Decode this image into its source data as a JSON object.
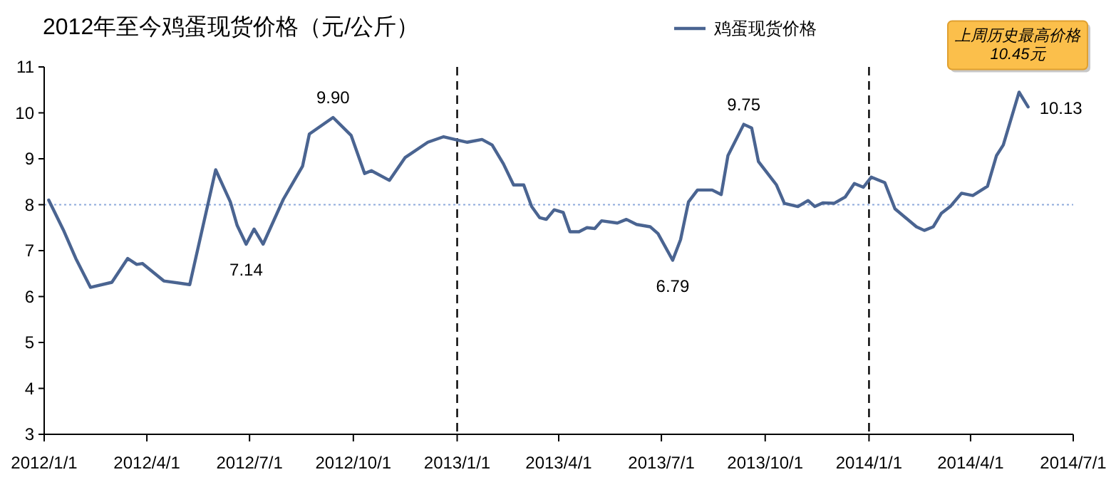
{
  "chart_data": {
    "type": "line",
    "title": "2012年至今鸡蛋现货价格（元/公斤）",
    "x": [
      "2012-01-05",
      "2012-01-18",
      "2012-01-29",
      "2012-02-11",
      "2012-03-01",
      "2012-03-15",
      "2012-03-23",
      "2012-03-28",
      "2012-04-16",
      "2012-05-09",
      "2012-06-01",
      "2012-06-14",
      "2012-06-20",
      "2012-06-28",
      "2012-07-05",
      "2012-07-13",
      "2012-07-31",
      "2012-08-17",
      "2012-08-23",
      "2012-09-13",
      "2012-09-29",
      "2012-10-11",
      "2012-10-17",
      "2012-11-02",
      "2012-11-16",
      "2012-12-06",
      "2012-12-20",
      "2013-01-01",
      "2013-01-10",
      "2013-01-23",
      "2013-02-01",
      "2013-02-11",
      "2013-02-20",
      "2013-03-01",
      "2013-03-08",
      "2013-03-15",
      "2013-03-21",
      "2013-03-28",
      "2013-04-05",
      "2013-04-11",
      "2013-04-19",
      "2013-04-26",
      "2013-05-03",
      "2013-05-09",
      "2013-05-23",
      "2013-05-31",
      "2013-06-09",
      "2013-06-21",
      "2013-06-28",
      "2013-07-11",
      "2013-07-18",
      "2013-07-25",
      "2013-08-02",
      "2013-08-15",
      "2013-08-23",
      "2013-08-29",
      "2013-09-12",
      "2013-09-19",
      "2013-09-25",
      "2013-10-11",
      "2013-10-18",
      "2013-10-30",
      "2013-11-08",
      "2013-11-14",
      "2013-11-21",
      "2013-12-01",
      "2013-12-11",
      "2013-12-19",
      "2013-12-27",
      "2014-01-03",
      "2014-01-15",
      "2014-01-24",
      "2014-02-12",
      "2014-02-19",
      "2014-02-27",
      "2014-03-06",
      "2014-03-14",
      "2014-03-24",
      "2014-04-03",
      "2014-04-16",
      "2014-04-24",
      "2014-04-30",
      "2014-05-14",
      "2014-05-22"
    ],
    "series": [
      {
        "name": "鸡蛋现货价格",
        "color": "#4a6491",
        "values": [
          8.1,
          7.45,
          6.83,
          6.2,
          6.31,
          6.83,
          6.7,
          6.72,
          6.34,
          6.26,
          8.76,
          8.06,
          7.55,
          7.14,
          7.47,
          7.14,
          8.12,
          8.84,
          9.54,
          9.9,
          9.51,
          8.68,
          8.74,
          8.53,
          9.03,
          9.36,
          9.48,
          9.41,
          9.36,
          9.42,
          9.3,
          8.89,
          8.43,
          8.43,
          7.96,
          7.72,
          7.68,
          7.89,
          7.83,
          7.41,
          7.41,
          7.5,
          7.48,
          7.65,
          7.6,
          7.68,
          7.57,
          7.52,
          7.37,
          6.79,
          7.24,
          8.06,
          8.32,
          8.32,
          8.22,
          9.07,
          9.75,
          9.67,
          8.94,
          8.43,
          8.03,
          7.96,
          8.09,
          7.96,
          8.04,
          8.03,
          8.17,
          8.46,
          8.38,
          8.6,
          8.48,
          7.91,
          7.52,
          7.44,
          7.52,
          7.81,
          7.96,
          8.25,
          8.2,
          8.4,
          9.07,
          9.3,
          10.45,
          10.13
        ]
      }
    ],
    "xlim": [
      "2012-01-01",
      "2014-07-01"
    ],
    "xticks": [
      {
        "value": "2012-01-01",
        "label": "2012/1/1"
      },
      {
        "value": "2012-04-01",
        "label": "2012/4/1"
      },
      {
        "value": "2012-07-01",
        "label": "2012/7/1"
      },
      {
        "value": "2012-10-01",
        "label": "2012/10/1"
      },
      {
        "value": "2013-01-01",
        "label": "2013/1/1"
      },
      {
        "value": "2013-04-01",
        "label": "2013/4/1"
      },
      {
        "value": "2013-07-01",
        "label": "2013/7/1"
      },
      {
        "value": "2013-10-01",
        "label": "2013/10/1"
      },
      {
        "value": "2014-01-01",
        "label": "2014/1/1"
      },
      {
        "value": "2014-04-01",
        "label": "2014/4/1"
      },
      {
        "value": "2014-07-01",
        "label": "2014/7/1"
      }
    ],
    "ylim": [
      3,
      11
    ],
    "yticks": [
      3,
      4,
      5,
      6,
      7,
      8,
      9,
      10,
      11
    ],
    "ref_lines": [
      {
        "axis": "y",
        "value": 8,
        "color": "#8eaadb",
        "line_style": "dotted"
      },
      {
        "axis": "x",
        "value": "2013-01-01",
        "color": "#000000",
        "line_style": "dashed"
      },
      {
        "axis": "x",
        "value": "2014-01-01",
        "color": "#000000",
        "line_style": "dashed"
      }
    ],
    "annotations": [
      {
        "text": "9.90",
        "x": "2012-09-13",
        "y": 9.9
      },
      {
        "text": "7.14",
        "x": "2012-06-28",
        "y": 7.14
      },
      {
        "text": "6.79",
        "x": "2013-07-11",
        "y": 6.79
      },
      {
        "text": "9.75",
        "x": "2013-09-12",
        "y": 9.75
      },
      {
        "text": "10.13",
        "x": "2014-05-22",
        "y": 10.13
      },
      {
        "text": "上周历史最高价格\n10.45元",
        "x": "2014-05-14",
        "y": 10.45
      }
    ],
    "legend": "top",
    "grid": false,
    "marker": "none",
    "line_style": "solid"
  }
}
